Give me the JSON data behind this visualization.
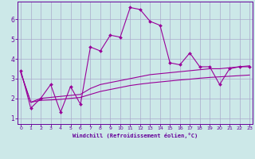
{
  "xlabel": "Windchill (Refroidissement éolien,°C)",
  "background_color": "#cce8e8",
  "grid_color": "#aaaacc",
  "line_color": "#990099",
  "spine_color": "#660099",
  "tick_color": "#660099",
  "x_ticks": [
    0,
    1,
    2,
    3,
    4,
    5,
    6,
    7,
    8,
    9,
    10,
    11,
    12,
    13,
    14,
    15,
    16,
    17,
    18,
    19,
    20,
    21,
    22,
    23
  ],
  "y_ticks": [
    1,
    2,
    3,
    4,
    5,
    6
  ],
  "xlim": [
    -0.3,
    23.3
  ],
  "ylim": [
    0.7,
    6.9
  ],
  "series1": {
    "x": [
      0,
      1,
      2,
      3,
      4,
      5,
      6,
      7,
      8,
      9,
      10,
      11,
      12,
      13,
      14,
      15,
      16,
      17,
      18,
      19,
      20,
      21,
      22,
      23
    ],
    "y": [
      3.4,
      1.5,
      2.0,
      2.7,
      1.3,
      2.6,
      1.7,
      4.6,
      4.4,
      5.2,
      5.1,
      6.6,
      6.5,
      5.9,
      5.7,
      3.8,
      3.7,
      4.3,
      3.6,
      3.6,
      2.7,
      3.5,
      3.6,
      3.6
    ]
  },
  "series2": {
    "x": [
      0,
      1,
      2,
      3,
      4,
      5,
      6,
      7,
      8,
      9,
      10,
      11,
      12,
      13,
      14,
      15,
      16,
      17,
      18,
      19,
      20,
      21,
      22,
      23
    ],
    "y": [
      3.3,
      1.8,
      2.0,
      2.05,
      2.1,
      2.15,
      2.2,
      2.5,
      2.7,
      2.8,
      2.9,
      3.0,
      3.1,
      3.2,
      3.25,
      3.3,
      3.35,
      3.4,
      3.45,
      3.5,
      3.5,
      3.55,
      3.6,
      3.65
    ]
  },
  "series3": {
    "x": [
      0,
      1,
      2,
      3,
      4,
      5,
      6,
      7,
      8,
      9,
      10,
      11,
      12,
      13,
      14,
      15,
      16,
      17,
      18,
      19,
      20,
      21,
      22,
      23
    ],
    "y": [
      3.3,
      1.8,
      1.9,
      1.92,
      1.95,
      2.0,
      2.05,
      2.2,
      2.35,
      2.45,
      2.55,
      2.65,
      2.72,
      2.78,
      2.83,
      2.88,
      2.93,
      2.97,
      3.02,
      3.06,
      3.09,
      3.12,
      3.15,
      3.18
    ]
  }
}
